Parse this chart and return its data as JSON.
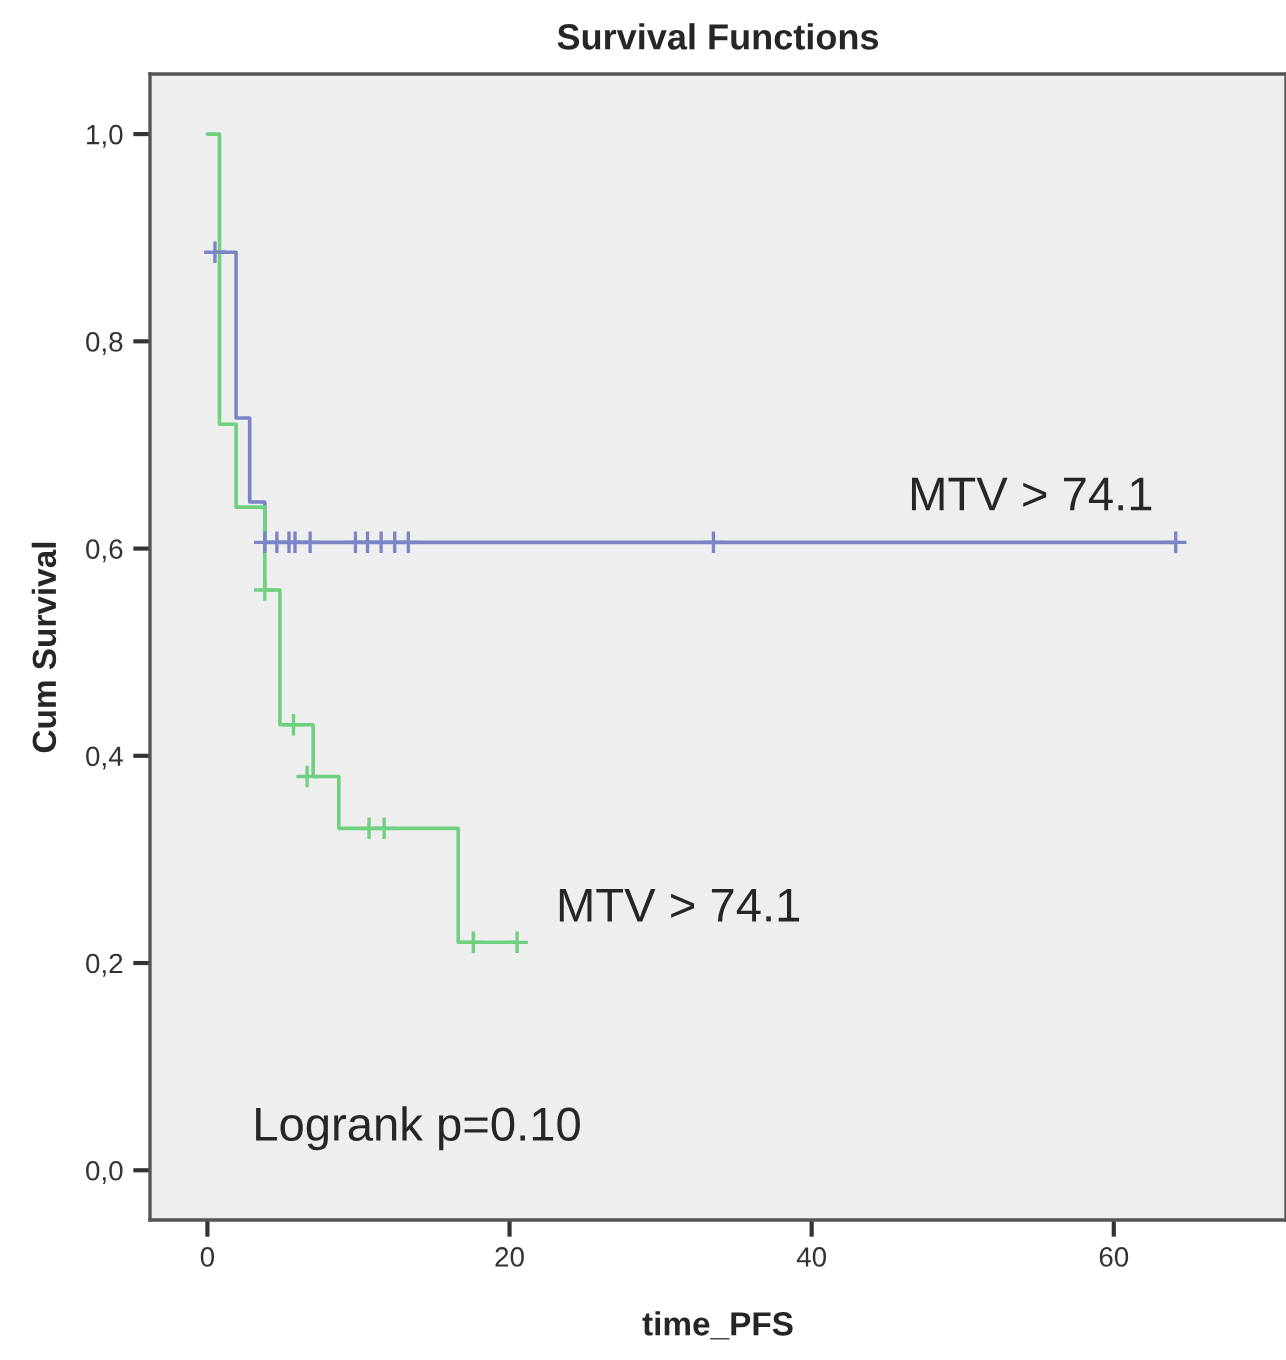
{
  "chart_data": {
    "type": "step",
    "title": "Survival Functions",
    "xlabel": "time_PFS",
    "ylabel": "Cum Survival",
    "series": [
      {
        "name": "MTV > 74.1",
        "color": "#7b84c6",
        "x": [
          0.5,
          1.9,
          2.8,
          3.8,
          64.1
        ],
        "values": [
          0.886,
          0.726,
          0.645,
          0.606,
          0.606
        ],
        "marker": "none"
      },
      {
        "name": "MTV > 74.1",
        "color": "#6fd07f",
        "x": [
          0,
          0.8,
          1.9,
          3.8,
          4.8,
          7.0,
          8.7,
          16.6,
          20.5
        ],
        "values": [
          1.0,
          0.72,
          0.64,
          0.56,
          0.43,
          0.38,
          0.33,
          0.22,
          0.22
        ],
        "marker": "none"
      },
      {
        "type": "scatter",
        "color": "#7b84c6",
        "marker": "cross",
        "x": [
          0.5,
          3.8,
          4.6,
          5.4,
          5.8,
          6.8,
          9.8,
          10.6,
          11.5,
          12.4,
          13.3,
          33.5,
          64.1
        ],
        "values": [
          0.886,
          0.606,
          0.606,
          0.606,
          0.606,
          0.606,
          0.606,
          0.606,
          0.606,
          0.606,
          0.606,
          0.606,
          0.606
        ]
      },
      {
        "type": "scatter",
        "color": "#6fd07f",
        "marker": "cross",
        "x": [
          3.8,
          5.7,
          6.6,
          10.7,
          11.7,
          17.6,
          20.5
        ],
        "values": [
          0.56,
          0.43,
          0.38,
          0.33,
          0.33,
          0.22,
          0.22
        ]
      }
    ],
    "annotations": [
      "Logrank p=0.10"
    ],
    "xlim": [
      -3.8,
      71.4
    ],
    "ylim": [
      -0.048,
      1.058
    ],
    "xticks": [
      0,
      20,
      40,
      60
    ],
    "yticks": [
      {
        "value": 0.0,
        "label": "0,0"
      },
      {
        "value": 0.2,
        "label": "0,2"
      },
      {
        "value": 0.4,
        "label": "0,4"
      },
      {
        "value": 0.6,
        "label": "0,6"
      },
      {
        "value": 0.8,
        "label": "0,8"
      },
      {
        "value": 1.0,
        "label": "1,0"
      }
    ],
    "grid": false,
    "legend": false
  }
}
